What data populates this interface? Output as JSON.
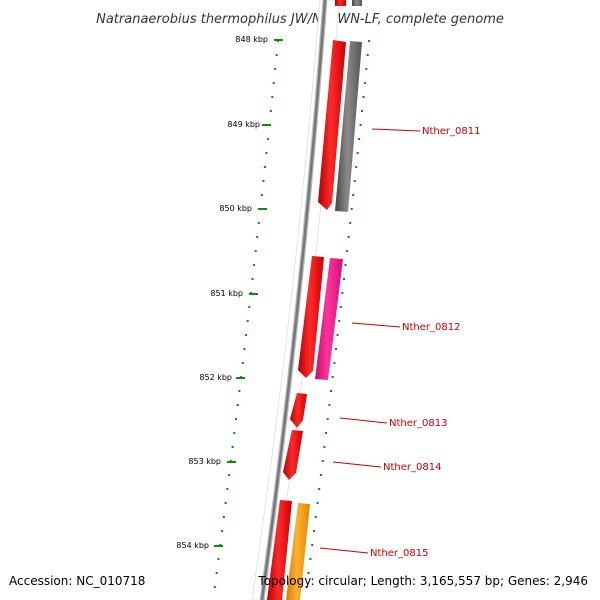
{
  "title": "Natranaerobius thermophilus JW/NM-WN-LF, complete genome",
  "ticks": [
    "848 kbp",
    "849 kbp",
    "850 kbp",
    "851 kbp",
    "852 kbp",
    "853 kbp",
    "854 kbp"
  ],
  "genes": [
    {
      "name": "Nther_0811",
      "color": "#666666"
    },
    {
      "name": "Nther_0812",
      "color": "#ee1188"
    },
    {
      "name": "Nther_0813",
      "color": "#ff0000"
    },
    {
      "name": "Nther_0814",
      "color": "#ff0000"
    },
    {
      "name": "Nther_0815",
      "color": "#ff9900"
    }
  ],
  "colors": {
    "backbone": "#888888",
    "cds": "#ff0000",
    "label": "#cc0000",
    "dots": "#118811"
  },
  "footer": {
    "accession": "Accession: NC_010718",
    "topology": "Topology: circular; Length: 3,165,557 bp; Genes: 2,946"
  }
}
